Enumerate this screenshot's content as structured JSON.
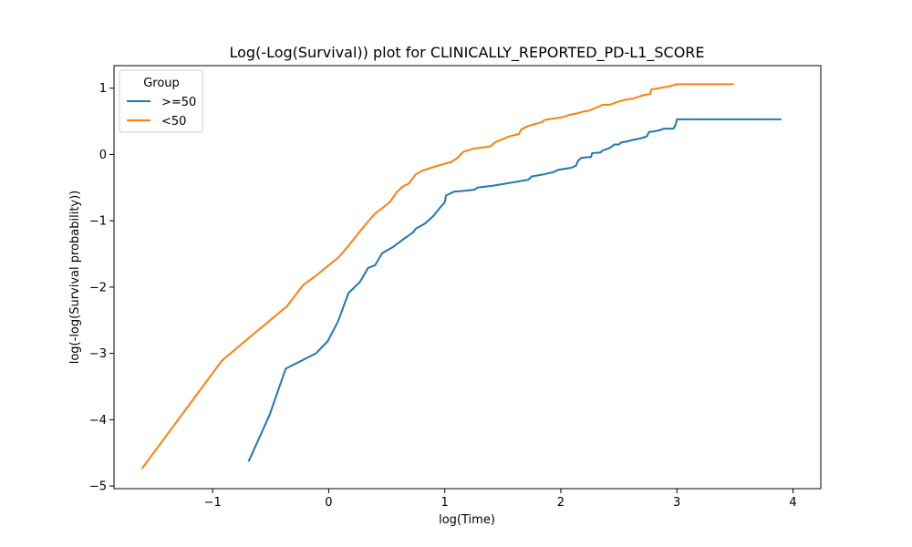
{
  "chart_data": {
    "type": "line",
    "title": "Log(-Log(Survival)) plot for CLINICALLY_REPORTED_PD-L1_SCORE",
    "xlabel": "log(Time)",
    "ylabel": "log(-log(Survival probability))",
    "xlim": [
      -1.85,
      4.24
    ],
    "ylim": [
      -5.04,
      1.34
    ],
    "xticks": [
      -1,
      0,
      1,
      2,
      3,
      4
    ],
    "xtick_labels": [
      "−1",
      "0",
      "1",
      "2",
      "3",
      "4"
    ],
    "yticks": [
      1,
      0,
      -1,
      -2,
      -3,
      -4,
      -5
    ],
    "ytick_labels": [
      "1",
      "0",
      "−1",
      "−2",
      "−3",
      "−4",
      "−5"
    ],
    "grid": false,
    "legend": {
      "title": "Group",
      "position": "top-left"
    },
    "series": [
      {
        "name": ">=50",
        "color": "#1f77b4",
        "points": [
          [
            -0.69,
            -4.63
          ],
          [
            -0.51,
            -3.93
          ],
          [
            -0.37,
            -3.23
          ],
          [
            -0.11,
            -3.0
          ],
          [
            -0.01,
            -2.82
          ],
          [
            0.08,
            -2.52
          ],
          [
            0.17,
            -2.09
          ],
          [
            0.27,
            -1.92
          ],
          [
            0.34,
            -1.71
          ],
          [
            0.4,
            -1.67
          ],
          [
            0.46,
            -1.49
          ],
          [
            0.55,
            -1.4
          ],
          [
            0.65,
            -1.27
          ],
          [
            0.73,
            -1.17
          ],
          [
            0.75,
            -1.12
          ],
          [
            0.79,
            -1.08
          ],
          [
            0.83,
            -1.04
          ],
          [
            0.9,
            -0.93
          ],
          [
            0.96,
            -0.8
          ],
          [
            1.0,
            -0.72
          ],
          [
            1.01,
            -0.62
          ],
          [
            1.08,
            -0.56
          ],
          [
            1.15,
            -0.55
          ],
          [
            1.26,
            -0.53
          ],
          [
            1.28,
            -0.5
          ],
          [
            1.42,
            -0.47
          ],
          [
            1.62,
            -0.41
          ],
          [
            1.72,
            -0.38
          ],
          [
            1.75,
            -0.33
          ],
          [
            1.85,
            -0.3
          ],
          [
            1.9,
            -0.28
          ],
          [
            1.93,
            -0.27
          ],
          [
            1.98,
            -0.23
          ],
          [
            2.09,
            -0.2
          ],
          [
            2.13,
            -0.17
          ],
          [
            2.15,
            -0.09
          ],
          [
            2.18,
            -0.05
          ],
          [
            2.23,
            -0.04
          ],
          [
            2.26,
            -0.04
          ],
          [
            2.27,
            0.02
          ],
          [
            2.34,
            0.03
          ],
          [
            2.36,
            0.06
          ],
          [
            2.41,
            0.09
          ],
          [
            2.44,
            0.12
          ],
          [
            2.46,
            0.15
          ],
          [
            2.5,
            0.15
          ],
          [
            2.52,
            0.18
          ],
          [
            2.58,
            0.2
          ],
          [
            2.62,
            0.22
          ],
          [
            2.68,
            0.24
          ],
          [
            2.72,
            0.26
          ],
          [
            2.74,
            0.27
          ],
          [
            2.76,
            0.34
          ],
          [
            2.81,
            0.35
          ],
          [
            2.86,
            0.37
          ],
          [
            2.89,
            0.39
          ],
          [
            2.97,
            0.39
          ],
          [
            2.99,
            0.45
          ],
          [
            3.0,
            0.53
          ],
          [
            3.9,
            0.53
          ]
        ]
      },
      {
        "name": "<50",
        "color": "#ff7f0e",
        "points": [
          [
            -1.61,
            -4.74
          ],
          [
            -0.92,
            -3.11
          ],
          [
            -0.69,
            -2.77
          ],
          [
            -0.36,
            -2.29
          ],
          [
            -0.22,
            -1.97
          ],
          [
            -0.11,
            -1.83
          ],
          [
            0.0,
            -1.67
          ],
          [
            0.08,
            -1.56
          ],
          [
            0.17,
            -1.38
          ],
          [
            0.26,
            -1.18
          ],
          [
            0.33,
            -1.03
          ],
          [
            0.4,
            -0.89
          ],
          [
            0.47,
            -0.8
          ],
          [
            0.53,
            -0.71
          ],
          [
            0.59,
            -0.56
          ],
          [
            0.64,
            -0.48
          ],
          [
            0.69,
            -0.44
          ],
          [
            0.75,
            -0.3
          ],
          [
            0.8,
            -0.25
          ],
          [
            0.92,
            -0.18
          ],
          [
            1.0,
            -0.14
          ],
          [
            1.06,
            -0.11
          ],
          [
            1.11,
            -0.05
          ],
          [
            1.16,
            0.04
          ],
          [
            1.25,
            0.09
          ],
          [
            1.39,
            0.12
          ],
          [
            1.44,
            0.19
          ],
          [
            1.5,
            0.23
          ],
          [
            1.55,
            0.27
          ],
          [
            1.64,
            0.31
          ],
          [
            1.66,
            0.38
          ],
          [
            1.72,
            0.43
          ],
          [
            1.78,
            0.46
          ],
          [
            1.84,
            0.49
          ],
          [
            1.86,
            0.52
          ],
          [
            1.96,
            0.55
          ],
          [
            2.01,
            0.56
          ],
          [
            2.08,
            0.6
          ],
          [
            2.14,
            0.62
          ],
          [
            2.2,
            0.65
          ],
          [
            2.24,
            0.66
          ],
          [
            2.27,
            0.68
          ],
          [
            2.32,
            0.72
          ],
          [
            2.36,
            0.75
          ],
          [
            2.42,
            0.75
          ],
          [
            2.5,
            0.8
          ],
          [
            2.54,
            0.82
          ],
          [
            2.61,
            0.84
          ],
          [
            2.67,
            0.87
          ],
          [
            2.72,
            0.9
          ],
          [
            2.77,
            0.91
          ],
          [
            2.78,
            0.98
          ],
          [
            2.88,
            1.01
          ],
          [
            2.94,
            1.03
          ],
          [
            3.0,
            1.06
          ],
          [
            3.49,
            1.06
          ]
        ]
      }
    ]
  }
}
